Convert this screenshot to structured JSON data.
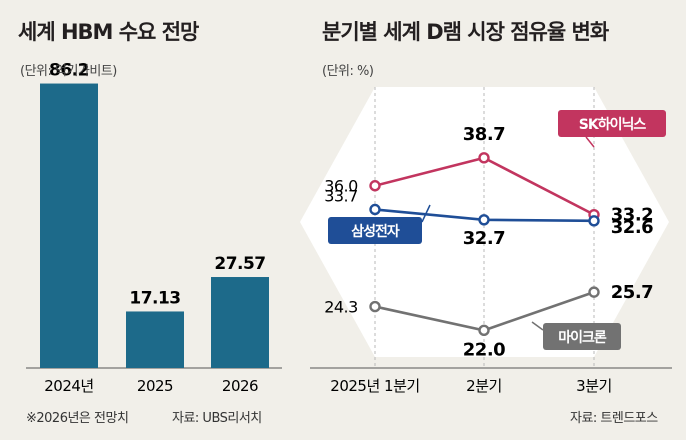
{
  "left": {
    "title": "세계 HBM 수요 전망",
    "unit": "(단위: 억기가비트)",
    "footnote": "※2026년은 전망치",
    "source": "자료: UBS리서치"
  },
  "right": {
    "title": "분기별 세계 D램 시장 점유율 변화",
    "unit": "(단위: %)",
    "source": "자료: 트렌드포스"
  },
  "colors": {
    "bar": "#1d6a8a",
    "sk": "#c2355f",
    "samsung": "#1f4e97",
    "micron": "#727272",
    "background": "#f1efe9"
  },
  "chart_data": [
    {
      "type": "bar",
      "title": "세계 HBM 수요 전망",
      "ylabel": "억기가비트",
      "categories": [
        "2024년",
        "2025",
        "2026"
      ],
      "values": [
        86.2,
        17.13,
        27.57
      ],
      "value_labels": [
        "86.2",
        "17.13",
        "27.57"
      ],
      "ylim": [
        0,
        100
      ]
    },
    {
      "type": "line",
      "title": "분기별 세계 D램 시장 점유율 변화",
      "ylabel": "%",
      "categories": [
        "2025년 1분기",
        "2분기",
        "3분기"
      ],
      "ylim": [
        20,
        40
      ],
      "series": [
        {
          "name": "SK하이닉스",
          "values": [
            36.0,
            38.7,
            33.2
          ],
          "labels": [
            "36.0",
            "38.7",
            "33.2"
          ],
          "color": "#c2355f"
        },
        {
          "name": "삼성전자",
          "values": [
            33.7,
            32.7,
            32.6
          ],
          "labels": [
            "33.7",
            "32.7",
            "32.6"
          ],
          "color": "#1f4e97"
        },
        {
          "name": "마이크론",
          "values": [
            24.3,
            22.0,
            25.7
          ],
          "labels": [
            "24.3",
            "22.0",
            "25.7"
          ],
          "color": "#727272"
        }
      ]
    }
  ]
}
